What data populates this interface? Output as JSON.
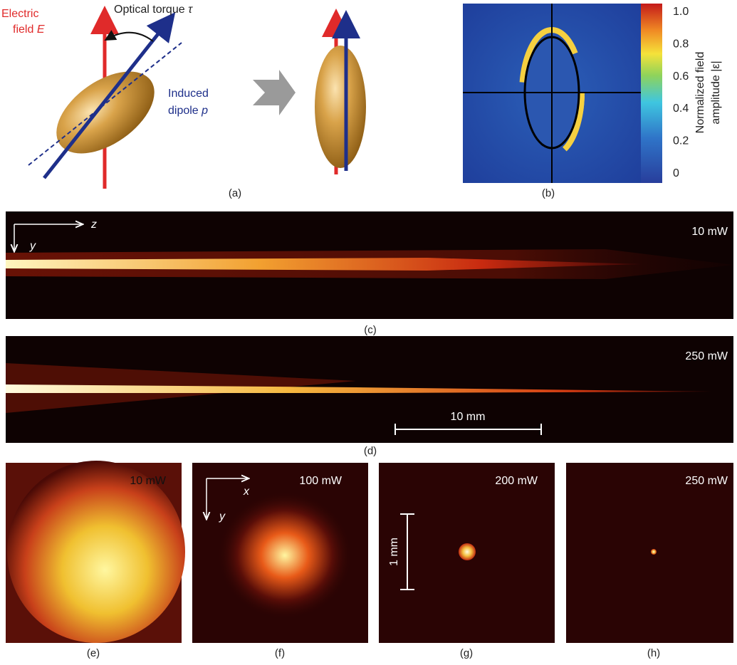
{
  "panel_a": {
    "electric_field": [
      "Electric",
      "field"
    ],
    "electric_symbol": "E",
    "torque": "Optical torque",
    "torque_symbol": "τ",
    "dipole": [
      "Induced",
      "dipole"
    ],
    "dipole_symbol": "p",
    "caption": "(a)"
  },
  "panel_b": {
    "colorbar_label": [
      "Normalized field",
      "amplitude |ε|"
    ],
    "colorbar_ticks": [
      "1.0",
      "0.8",
      "0.6",
      "0.4",
      "0.2",
      "0"
    ],
    "caption": "(b)"
  },
  "panel_c": {
    "axis_z": "z",
    "axis_y": "y",
    "power": "10 mW",
    "caption": "(c)"
  },
  "panel_d": {
    "power": "250 mW",
    "scale_bar": "10 mm",
    "caption": "(d)"
  },
  "panel_e": {
    "power": "10 mW",
    "caption": "(e)"
  },
  "panel_f": {
    "axis_x": "x",
    "axis_y": "y",
    "power": "100 mW",
    "caption": "(f)"
  },
  "panel_g": {
    "power": "200 mW",
    "scale_bar": "1 mm",
    "caption": "(g)"
  },
  "panel_h": {
    "power": "250 mW",
    "caption": "(h)"
  }
}
